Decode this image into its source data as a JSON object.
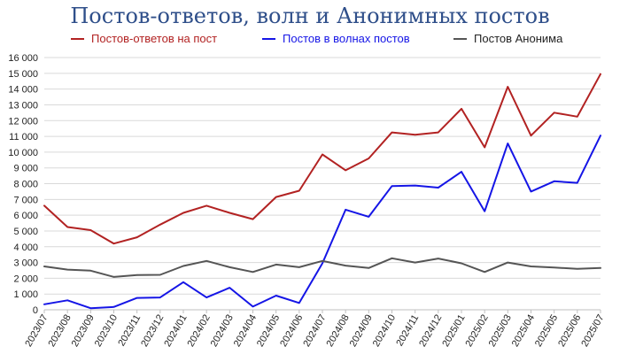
{
  "chart_data": {
    "type": "line",
    "title": "Постов-ответов, волн и Анонимных постов",
    "xlabel": "",
    "ylabel": "",
    "ylim": [
      0,
      16000
    ],
    "y_ticks": [
      "0",
      "1 000",
      "2 000",
      "3 000",
      "4 000",
      "5 000",
      "6 000",
      "7 000",
      "8 000",
      "9 000",
      "10 000",
      "11 000",
      "12 000",
      "13 000",
      "14 000",
      "15 000",
      "16 000"
    ],
    "grid": true,
    "legend_position": "top",
    "categories": [
      "2023/07",
      "2023/08",
      "2023/09",
      "2023/10",
      "2023/11",
      "2023/12",
      "2024/01",
      "2024/02",
      "2024/03",
      "2024/04",
      "2024/05",
      "2024/06",
      "2024/07",
      "2024/08",
      "2024/09",
      "2024/10",
      "2024/11",
      "2024/12",
      "2025/01",
      "2025/02",
      "2025/03",
      "2025/04",
      "2025/05",
      "2025/06",
      "2025/07"
    ],
    "series": [
      {
        "name": "Постов-ответов на пост",
        "color": "#b22222",
        "values": [
          6600,
          5250,
          5050,
          4200,
          4600,
          5400,
          6150,
          6600,
          6150,
          5750,
          7150,
          7550,
          9850,
          8850,
          9600,
          11250,
          11100,
          11250,
          12750,
          10300,
          14150,
          11050,
          12500,
          12250,
          14950
        ]
      },
      {
        "name": "Постов в волнах постов",
        "color": "#1515e6",
        "values": [
          350,
          600,
          100,
          180,
          750,
          780,
          1750,
          780,
          1400,
          200,
          900,
          430,
          2950,
          6350,
          5900,
          7850,
          7880,
          7750,
          8750,
          6250,
          10550,
          7500,
          8150,
          8050,
          11050
        ]
      },
      {
        "name": "Постов Анонима",
        "color": "#555555",
        "values": [
          2750,
          2550,
          2480,
          2080,
          2200,
          2220,
          2780,
          3100,
          2700,
          2400,
          2870,
          2700,
          3100,
          2800,
          2650,
          3270,
          3000,
          3250,
          2950,
          2400,
          3000,
          2750,
          2680,
          2600,
          2650
        ]
      }
    ]
  }
}
